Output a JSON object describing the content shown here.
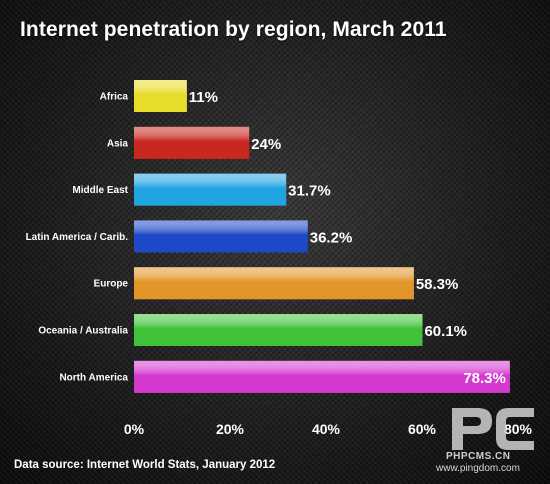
{
  "chart_data": {
    "type": "bar",
    "orientation": "horizontal",
    "title": "Internet penetration by region, March 2011",
    "categories": [
      "Africa",
      "Asia",
      "Middle East",
      "Latin America / Carib.",
      "Europe",
      "Oceania / Australia",
      "North America"
    ],
    "values": [
      11,
      24,
      31.7,
      36.2,
      58.3,
      60.1,
      78.3
    ],
    "value_labels": [
      "11%",
      "24%",
      "31.7%",
      "36.2%",
      "58.3%",
      "60.1%",
      "78.3%"
    ],
    "colors": [
      "#e8dc2a",
      "#c8281f",
      "#21a4e2",
      "#1d49c9",
      "#e2962a",
      "#3fc23a",
      "#d43ad0"
    ],
    "xlim": [
      0,
      80
    ],
    "ticks": [
      0,
      20,
      40,
      60,
      80
    ],
    "tick_labels": [
      "0%",
      "20%",
      "40%",
      "60%",
      "80%"
    ],
    "xlabel": "",
    "ylabel": "",
    "grid": false,
    "legend": "none"
  },
  "source": "Data source: Internet World Stats, January 2012",
  "watermark": {
    "logo_text": "PC",
    "site": "PHPCMS.CN",
    "credit": "www.pingdom.com"
  }
}
